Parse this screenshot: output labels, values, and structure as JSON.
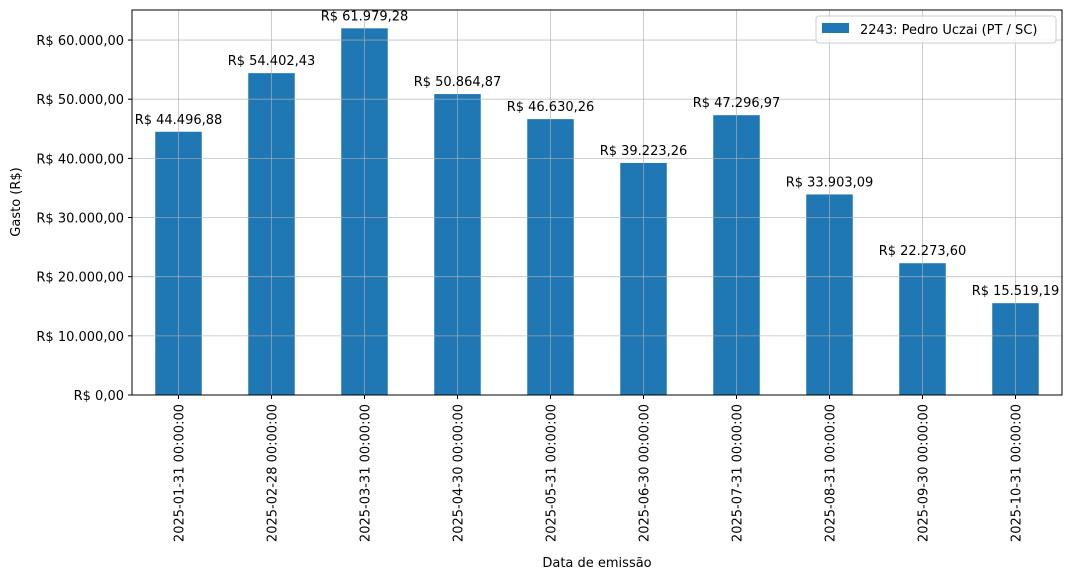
{
  "chart_data": {
    "type": "bar",
    "title": "",
    "xlabel": "Data de emissão",
    "ylabel": "Gasto (R$)",
    "categories": [
      "2025-01-31 00:00:00",
      "2025-02-28 00:00:00",
      "2025-03-31 00:00:00",
      "2025-04-30 00:00:00",
      "2025-05-31 00:00:00",
      "2025-06-30 00:00:00",
      "2025-07-31 00:00:00",
      "2025-08-31 00:00:00",
      "2025-09-30 00:00:00",
      "2025-10-31 00:00:00"
    ],
    "series": [
      {
        "name": "2243: Pedro Uczai (PT / SC)",
        "color": "#1f77b4",
        "values": [
          44496.88,
          54402.43,
          61979.28,
          50864.87,
          46630.26,
          39223.26,
          47296.97,
          33903.09,
          22273.6,
          15519.19
        ],
        "data_labels": [
          "R$ 44.496,88",
          "R$ 54.402,43",
          "R$ 61.979,28",
          "R$ 50.864,87",
          "R$ 46.630,26",
          "R$ 39.223,26",
          "R$ 47.296,97",
          "R$ 33.903,09",
          "R$ 22.273,60",
          "R$ 15.519,19"
        ]
      }
    ],
    "ylim": [
      0,
      65078
    ],
    "yticks": [
      0,
      10000,
      20000,
      30000,
      40000,
      50000,
      60000
    ],
    "ytick_labels": [
      "R$ 0,00",
      "R$ 10.000,00",
      "R$ 20.000,00",
      "R$ 30.000,00",
      "R$ 40.000,00",
      "R$ 50.000,00",
      "R$ 60.000,00"
    ],
    "grid": true,
    "legend_position": "top-right"
  }
}
